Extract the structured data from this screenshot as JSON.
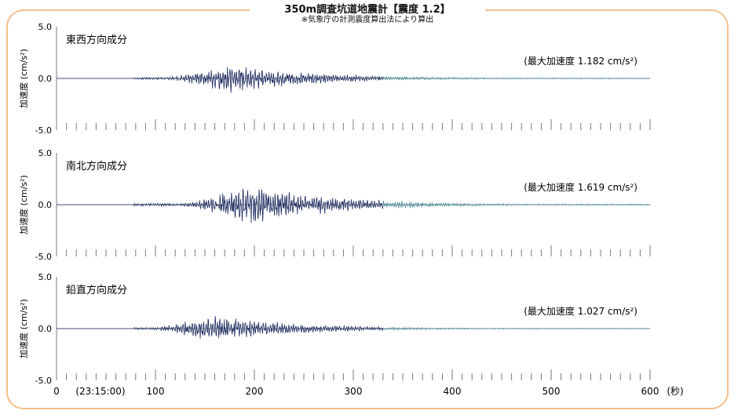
{
  "chart_title": "350m調査坑道地震計【震度 1.2】",
  "chart_subtitle": "※気象庁の計測震度算出法により算出",
  "chart_data": {
    "type": "line",
    "x_axis": {
      "unit": "(秒)",
      "range": [
        0,
        600
      ],
      "tick_labels": [
        "0",
        "100",
        "200",
        "300",
        "400",
        "500",
        "600"
      ],
      "start_time_label": "(23:15:00)"
    },
    "y_axis": {
      "label": "加速度 (cm/s²)",
      "range": [
        -5.0,
        5.0
      ],
      "tick_labels": [
        "5.0",
        "0.0",
        "-5.0"
      ]
    },
    "panels": [
      {
        "name": "東西方向成分",
        "peak_label": "(最大加速度 1.182 cm/s²)",
        "peak": 1.182,
        "peak_time": 180
      },
      {
        "name": "南北方向成分",
        "peak_label": "(最大加速度 1.619 cm/s²)",
        "peak": 1.619,
        "peak_time": 200
      },
      {
        "name": "鉛直方向成分",
        "peak_label": "(最大加速度 1.027 cm/s²)",
        "peak": 1.027,
        "peak_time": 165
      }
    ],
    "signal_start": 78,
    "colors": {
      "trace_early": "#1c2b5e",
      "trace_late": "#4d8a96",
      "axis": "#7a7a7a",
      "frame": "#f3c08a"
    }
  }
}
